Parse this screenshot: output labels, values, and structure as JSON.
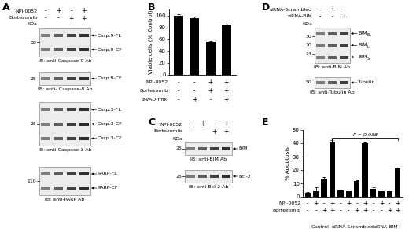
{
  "blot_panels": [
    {
      "letter": "A",
      "size_unit": "KDa",
      "conditions": [
        {
          "label": "NPI-0052",
          "signs": [
            "-",
            "+",
            "-",
            "+"
          ]
        },
        {
          "label": "Bortezomib",
          "signs": [
            "-",
            "-",
            "+",
            "+"
          ]
        }
      ],
      "blots": [
        {
          "markers": [
            38
          ],
          "bands": [
            "Casp.9-FL",
            "Casp.9-CF"
          ],
          "antibody": "IB: anti-Caspase-9 Ab"
        },
        {
          "markers": [
            25
          ],
          "bands": [
            "Casp.8-CF"
          ],
          "antibody": "IB: anti- Caspase-8 Ab"
        },
        {
          "markers": [
            25
          ],
          "bands": [
            "Casp.3-FL",
            "Casp.3-CF",
            "Casp.3-CF"
          ],
          "antibody": "IB: anti-Caspase-3 Ab"
        },
        {
          "markers": [
            110
          ],
          "bands": [
            "PARP-FL",
            "PARP-CF"
          ],
          "antibody": "IB: anti-PARP Ab"
        }
      ]
    },
    {
      "letter": "C",
      "size_unit": "KDa",
      "conditions": [
        {
          "label": "NPI-0052",
          "signs": [
            "-",
            "+",
            "-",
            "+"
          ]
        },
        {
          "label": "Bortezomib",
          "signs": [
            "-",
            "-",
            "+",
            "+"
          ]
        }
      ],
      "blots": [
        {
          "markers": [
            25
          ],
          "bands": [
            "BIM"
          ],
          "antibody": "IB: anti-BIM Ab"
        },
        {
          "markers": [
            25
          ],
          "bands": [
            "Bcl-2"
          ],
          "antibody": "IB: anti-Bcl-2 Ab"
        }
      ]
    },
    {
      "letter": "D",
      "size_unit": "KDa",
      "conditions": [
        {
          "label": "siRNA-Scrambled",
          "signs": [
            "-",
            "+",
            "-"
          ]
        },
        {
          "label": "siRNA-BIM",
          "signs": [
            "-",
            "-",
            "+"
          ]
        }
      ],
      "blots": [
        {
          "markers": [
            30,
            20,
            14
          ],
          "bands": [
            {
              "text": "BIM",
              "sub": "EL"
            },
            {
              "text": "BIM",
              "sub": "L"
            },
            {
              "text": "BIM",
              "sub": "S"
            }
          ],
          "antibody": "IB: anti-BIM Ab"
        },
        {
          "markers": [
            50
          ],
          "bands": [
            "Tubulin"
          ],
          "antibody": "IB: anti-Tubulin Ab"
        }
      ]
    }
  ],
  "chart_data": [
    {
      "letter": "B",
      "type": "bar",
      "categories": [
        null,
        null,
        null,
        null
      ],
      "values": [
        100,
        96,
        55,
        83
      ],
      "errors": [
        2,
        2,
        2,
        3
      ],
      "color": "#000000",
      "ylabel": "Viable cells (% Control)",
      "ylim": [
        0,
        110
      ],
      "yticks": [
        0,
        20,
        40,
        60,
        80,
        100
      ],
      "conditions": [
        {
          "label": "NPI-0052",
          "signs": [
            "-",
            "-",
            "+",
            "+"
          ]
        },
        {
          "label": "Bortezomib",
          "signs": [
            "-",
            "-",
            "+",
            "+"
          ]
        },
        {
          "label": "z-VAD-fmk",
          "signs": [
            "-",
            "+",
            "-",
            "+"
          ]
        }
      ]
    },
    {
      "letter": "E",
      "type": "bar",
      "categories": [
        null,
        null,
        null,
        null,
        null,
        null,
        null,
        null,
        null,
        null,
        null,
        null
      ],
      "values": [
        3,
        4,
        13,
        41,
        5,
        4,
        12,
        40,
        6,
        4,
        4,
        21
      ],
      "errors": [
        0.3,
        3,
        2,
        1.5,
        0.5,
        0.3,
        0.5,
        0.8,
        0.8,
        0.4,
        0.3,
        0.5
      ],
      "color": "#000000",
      "ylabel": "% Apoptosis",
      "ylim": [
        0,
        50
      ],
      "yticks": [
        0,
        10,
        20,
        30,
        40,
        50
      ],
      "conditions": [
        {
          "label": "NPI-0052",
          "signs": [
            "-",
            "+",
            "-",
            "+",
            "-",
            "+",
            "-",
            "+",
            "-",
            "+",
            "-",
            "+"
          ]
        },
        {
          "label": "Bortezomib",
          "signs": [
            "-",
            "-",
            "+",
            "+",
            "-",
            "-",
            "+",
            "+",
            "-",
            "-",
            "+",
            "+"
          ]
        }
      ],
      "group_labels": [
        "Control",
        "siRNA-Scrambled",
        "siRNA-BIM"
      ],
      "annotation": {
        "text": "P = 0.038",
        "between": [
          3,
          11
        ]
      }
    }
  ]
}
